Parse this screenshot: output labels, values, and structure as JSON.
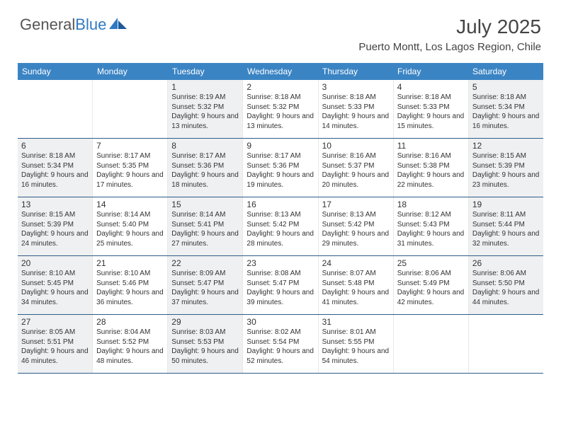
{
  "logo": {
    "text1": "General",
    "text2": "Blue"
  },
  "title": "July 2025",
  "location": "Puerto Montt, Los Lagos Region, Chile",
  "days": [
    "Sunday",
    "Monday",
    "Tuesday",
    "Wednesday",
    "Thursday",
    "Friday",
    "Saturday"
  ],
  "colors": {
    "header_bg": "#3b84c4",
    "header_text": "#ffffff",
    "rule": "#2f5c87",
    "shaded": "#eef0f2",
    "text": "#333333",
    "logo_gray": "#555555",
    "logo_blue": "#2f7ac4"
  },
  "weeks": [
    [
      {
        "n": "",
        "empty": true
      },
      {
        "n": "",
        "empty": true
      },
      {
        "n": "1",
        "shaded": true,
        "sunrise": "8:19 AM",
        "sunset": "5:32 PM",
        "daylight": "9 hours and 13 minutes."
      },
      {
        "n": "2",
        "sunrise": "8:18 AM",
        "sunset": "5:32 PM",
        "daylight": "9 hours and 13 minutes."
      },
      {
        "n": "3",
        "sunrise": "8:18 AM",
        "sunset": "5:33 PM",
        "daylight": "9 hours and 14 minutes."
      },
      {
        "n": "4",
        "sunrise": "8:18 AM",
        "sunset": "5:33 PM",
        "daylight": "9 hours and 15 minutes."
      },
      {
        "n": "5",
        "shaded": true,
        "sunrise": "8:18 AM",
        "sunset": "5:34 PM",
        "daylight": "9 hours and 16 minutes."
      }
    ],
    [
      {
        "n": "6",
        "shaded": true,
        "sunrise": "8:18 AM",
        "sunset": "5:34 PM",
        "daylight": "9 hours and 16 minutes."
      },
      {
        "n": "7",
        "sunrise": "8:17 AM",
        "sunset": "5:35 PM",
        "daylight": "9 hours and 17 minutes."
      },
      {
        "n": "8",
        "shaded": true,
        "sunrise": "8:17 AM",
        "sunset": "5:36 PM",
        "daylight": "9 hours and 18 minutes."
      },
      {
        "n": "9",
        "sunrise": "8:17 AM",
        "sunset": "5:36 PM",
        "daylight": "9 hours and 19 minutes."
      },
      {
        "n": "10",
        "sunrise": "8:16 AM",
        "sunset": "5:37 PM",
        "daylight": "9 hours and 20 minutes."
      },
      {
        "n": "11",
        "sunrise": "8:16 AM",
        "sunset": "5:38 PM",
        "daylight": "9 hours and 22 minutes."
      },
      {
        "n": "12",
        "shaded": true,
        "sunrise": "8:15 AM",
        "sunset": "5:39 PM",
        "daylight": "9 hours and 23 minutes."
      }
    ],
    [
      {
        "n": "13",
        "shaded": true,
        "sunrise": "8:15 AM",
        "sunset": "5:39 PM",
        "daylight": "9 hours and 24 minutes."
      },
      {
        "n": "14",
        "sunrise": "8:14 AM",
        "sunset": "5:40 PM",
        "daylight": "9 hours and 25 minutes."
      },
      {
        "n": "15",
        "shaded": true,
        "sunrise": "8:14 AM",
        "sunset": "5:41 PM",
        "daylight": "9 hours and 27 minutes."
      },
      {
        "n": "16",
        "sunrise": "8:13 AM",
        "sunset": "5:42 PM",
        "daylight": "9 hours and 28 minutes."
      },
      {
        "n": "17",
        "sunrise": "8:13 AM",
        "sunset": "5:42 PM",
        "daylight": "9 hours and 29 minutes."
      },
      {
        "n": "18",
        "sunrise": "8:12 AM",
        "sunset": "5:43 PM",
        "daylight": "9 hours and 31 minutes."
      },
      {
        "n": "19",
        "shaded": true,
        "sunrise": "8:11 AM",
        "sunset": "5:44 PM",
        "daylight": "9 hours and 32 minutes."
      }
    ],
    [
      {
        "n": "20",
        "shaded": true,
        "sunrise": "8:10 AM",
        "sunset": "5:45 PM",
        "daylight": "9 hours and 34 minutes."
      },
      {
        "n": "21",
        "sunrise": "8:10 AM",
        "sunset": "5:46 PM",
        "daylight": "9 hours and 36 minutes."
      },
      {
        "n": "22",
        "shaded": true,
        "sunrise": "8:09 AM",
        "sunset": "5:47 PM",
        "daylight": "9 hours and 37 minutes."
      },
      {
        "n": "23",
        "sunrise": "8:08 AM",
        "sunset": "5:47 PM",
        "daylight": "9 hours and 39 minutes."
      },
      {
        "n": "24",
        "sunrise": "8:07 AM",
        "sunset": "5:48 PM",
        "daylight": "9 hours and 41 minutes."
      },
      {
        "n": "25",
        "sunrise": "8:06 AM",
        "sunset": "5:49 PM",
        "daylight": "9 hours and 42 minutes."
      },
      {
        "n": "26",
        "shaded": true,
        "sunrise": "8:06 AM",
        "sunset": "5:50 PM",
        "daylight": "9 hours and 44 minutes."
      }
    ],
    [
      {
        "n": "27",
        "shaded": true,
        "sunrise": "8:05 AM",
        "sunset": "5:51 PM",
        "daylight": "9 hours and 46 minutes."
      },
      {
        "n": "28",
        "sunrise": "8:04 AM",
        "sunset": "5:52 PM",
        "daylight": "9 hours and 48 minutes."
      },
      {
        "n": "29",
        "shaded": true,
        "sunrise": "8:03 AM",
        "sunset": "5:53 PM",
        "daylight": "9 hours and 50 minutes."
      },
      {
        "n": "30",
        "sunrise": "8:02 AM",
        "sunset": "5:54 PM",
        "daylight": "9 hours and 52 minutes."
      },
      {
        "n": "31",
        "sunrise": "8:01 AM",
        "sunset": "5:55 PM",
        "daylight": "9 hours and 54 minutes."
      },
      {
        "n": "",
        "empty": true
      },
      {
        "n": "",
        "empty": true
      }
    ]
  ],
  "labels": {
    "sunrise_prefix": "Sunrise: ",
    "sunset_prefix": "Sunset: ",
    "daylight_prefix": "Daylight: "
  }
}
